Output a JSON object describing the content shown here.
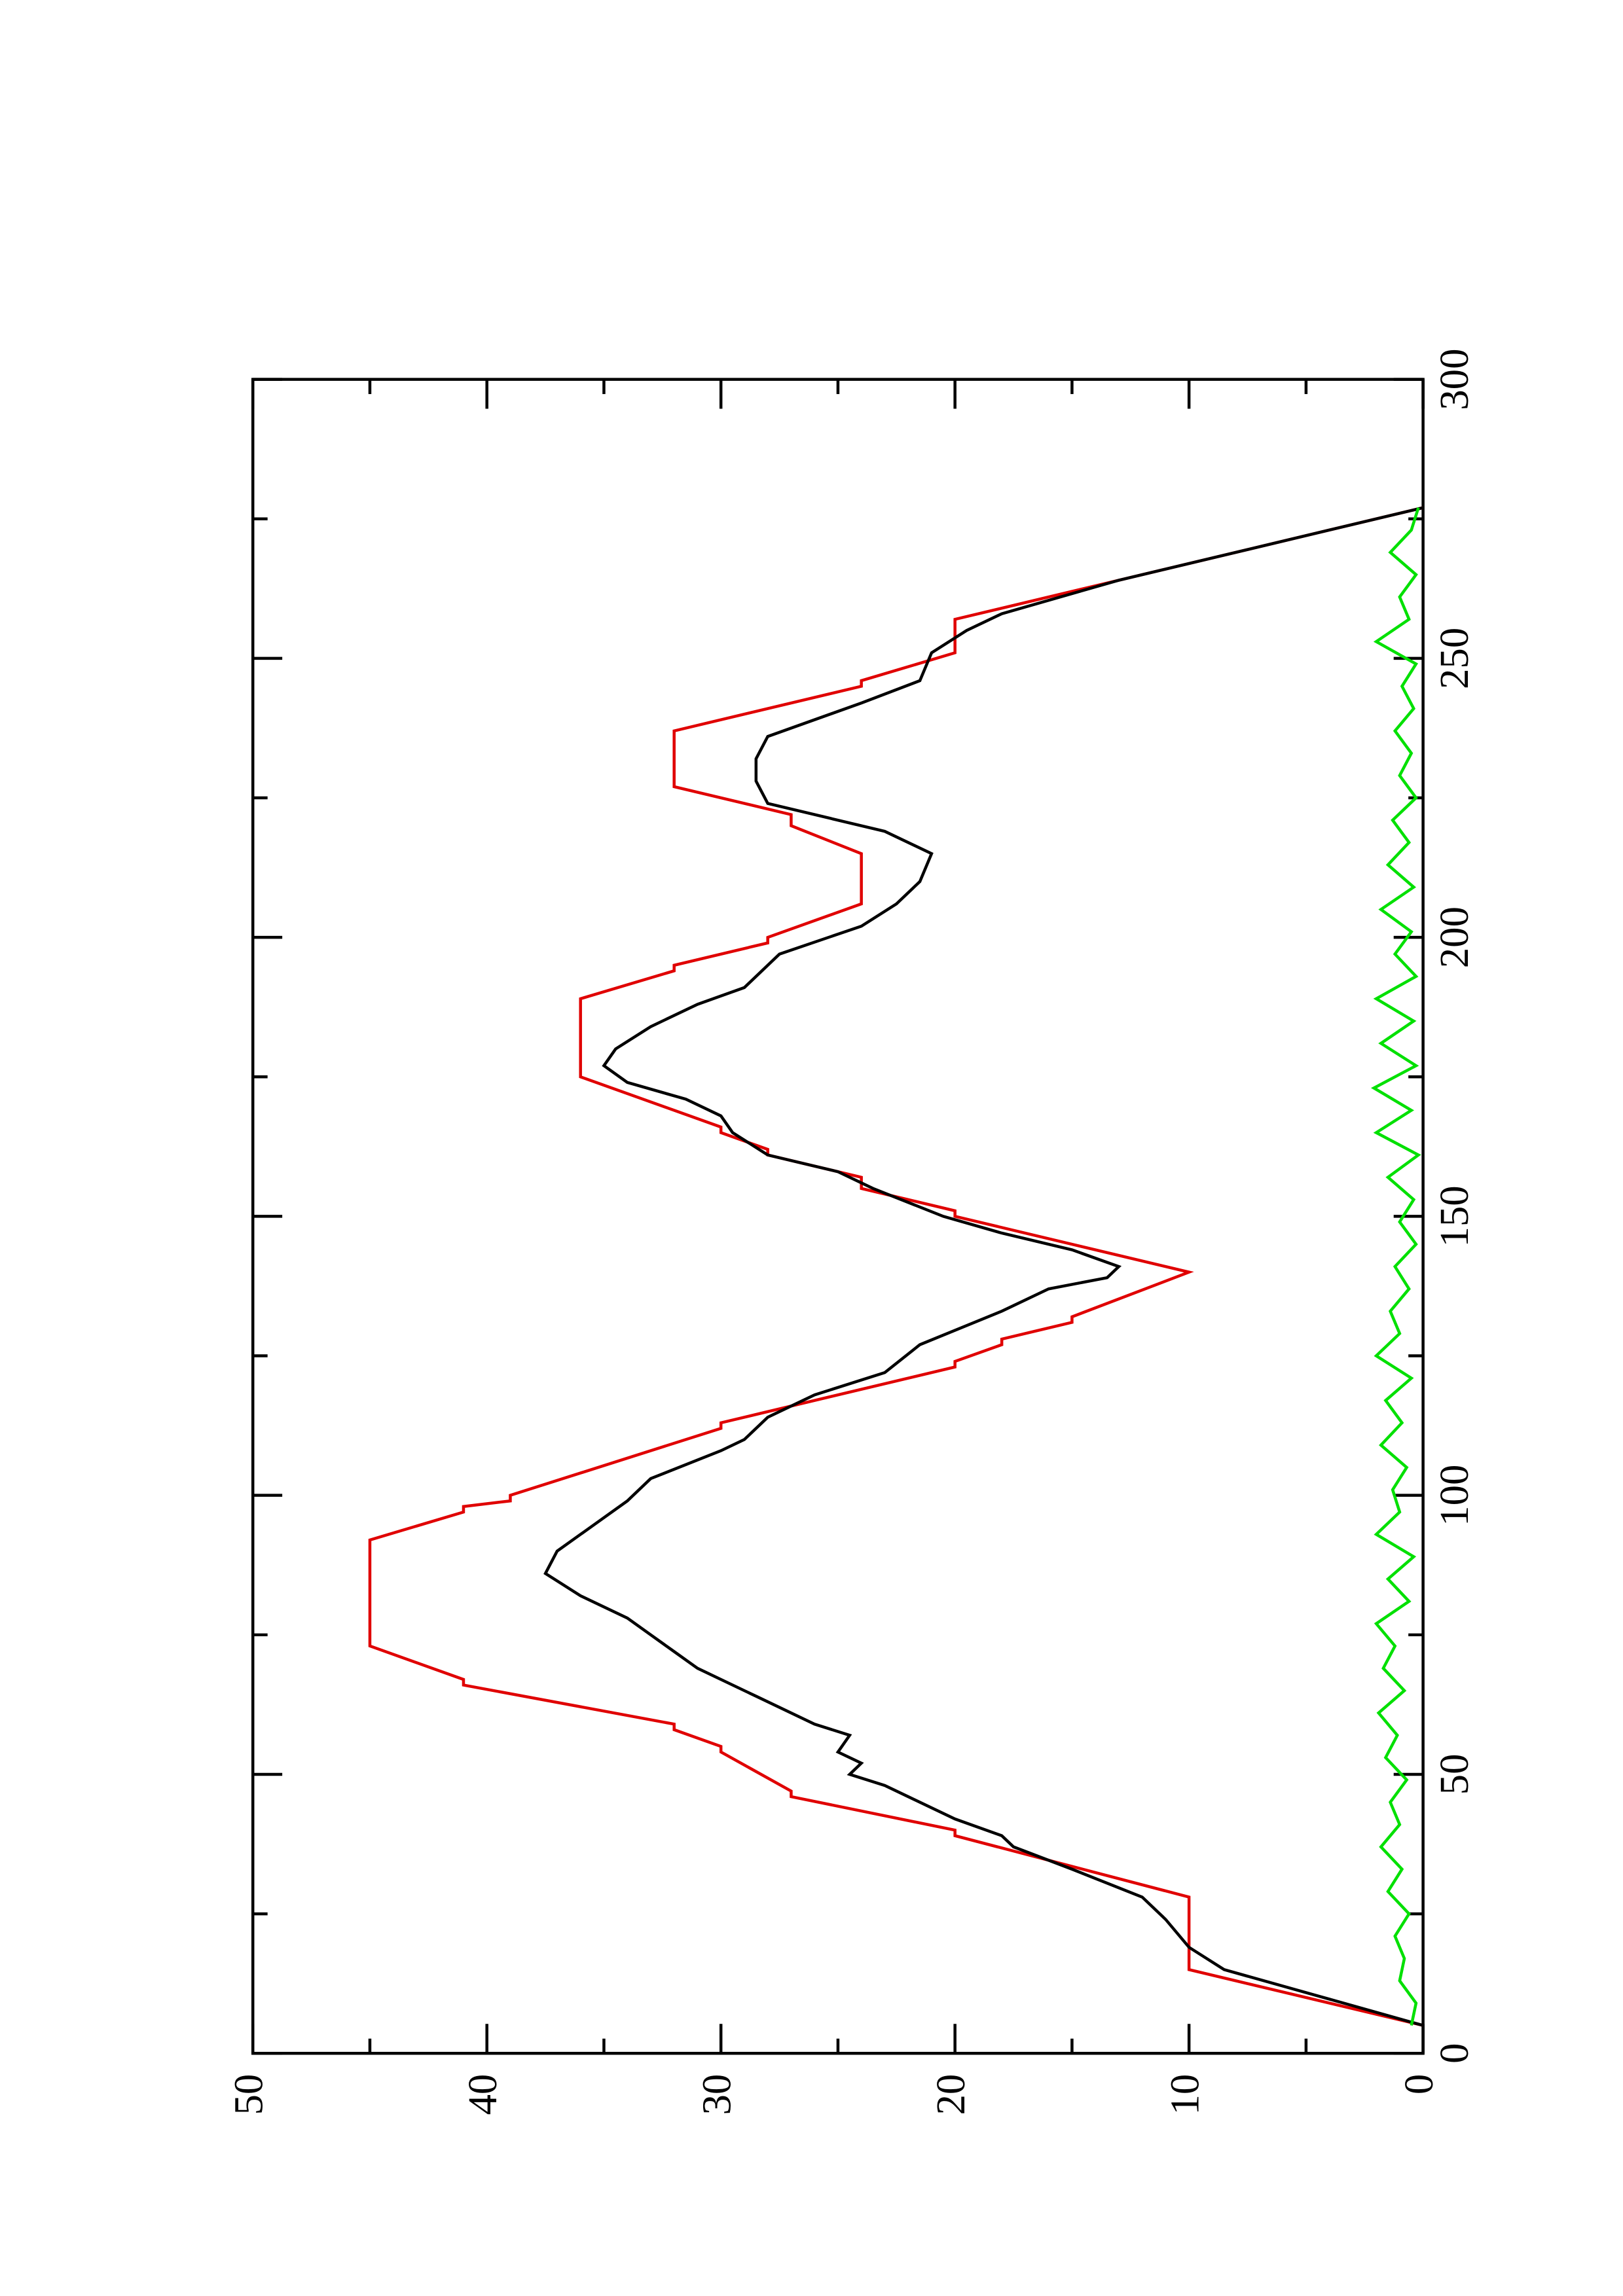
{
  "chart_data": {
    "type": "line",
    "orientation": "rotated",
    "xlim": [
      0,
      300
    ],
    "xticks": [
      0,
      50,
      100,
      150,
      200,
      250,
      300
    ],
    "xminor": [
      25,
      75,
      125,
      175,
      225,
      275
    ],
    "ylim": [
      0,
      50
    ],
    "yticks": [
      0,
      10,
      20,
      30,
      40,
      50
    ],
    "yminor": [
      5,
      15,
      25,
      35,
      45
    ],
    "series": [
      {
        "color": "#e00000",
        "x": [
          5,
          15,
          28,
          39,
          40,
          46,
          47,
          54,
          55,
          58,
          59,
          66,
          67,
          73,
          92,
          97,
          98,
          99,
          100,
          112,
          113,
          123,
          124,
          127,
          128,
          131,
          132,
          140,
          150,
          151,
          155,
          157,
          161,
          162,
          165,
          166,
          175,
          189,
          194,
          195,
          199,
          200,
          206,
          215,
          220,
          222,
          227,
          237,
          245,
          246,
          251,
          257,
          277
        ],
        "values": [
          0,
          10,
          10,
          20,
          20,
          27,
          27,
          30,
          30,
          32,
          32,
          41,
          41,
          45,
          45,
          41,
          41,
          39,
          39,
          30,
          30,
          20,
          20,
          18,
          18,
          15,
          15,
          10,
          20,
          20,
          24,
          24,
          28,
          28,
          30,
          30,
          36,
          36,
          32,
          32,
          28,
          28,
          24,
          24,
          27,
          27,
          32,
          32,
          24,
          24,
          20,
          20,
          0
        ]
      },
      {
        "color": "#000000",
        "x": [
          5,
          15,
          19,
          24,
          28,
          33,
          37,
          39,
          42,
          46,
          48,
          50,
          52,
          54,
          57,
          59,
          64,
          67,
          69,
          72,
          75,
          78,
          82,
          86,
          90,
          93,
          96,
          99,
          103,
          108,
          110,
          114,
          118,
          122,
          127,
          133,
          137,
          139,
          141,
          144,
          147,
          150,
          155,
          158,
          161,
          165,
          168,
          171,
          174,
          177,
          180,
          184,
          188,
          191,
          197,
          202,
          206,
          210,
          215,
          219,
          224,
          228,
          232,
          236,
          242,
          246,
          251,
          255,
          258,
          264,
          268,
          272,
          277
        ],
        "values": [
          0,
          8.5,
          10,
          11,
          12,
          15,
          17.5,
          18,
          20,
          22,
          23,
          24.5,
          24,
          25,
          24.5,
          26,
          28.5,
          30,
          31,
          32,
          33,
          34,
          36,
          37.5,
          37,
          36,
          35,
          34,
          33,
          30,
          29,
          28,
          26,
          23,
          21.5,
          18,
          16,
          13.5,
          13,
          15,
          18,
          20.5,
          23.5,
          25,
          28,
          29.5,
          30,
          31.5,
          34,
          35,
          34.5,
          33,
          31,
          29,
          27.5,
          24,
          22.5,
          21.5,
          21,
          23,
          28,
          28.5,
          28.5,
          28,
          24,
          21.5,
          21,
          19.5,
          18,
          13,
          9,
          5,
          0
        ]
      },
      {
        "color": "#00e000",
        "x": [
          5,
          9,
          13,
          17,
          21,
          25,
          29,
          33,
          37,
          41,
          45,
          49,
          53,
          57,
          61,
          65,
          69,
          73,
          77,
          81,
          85,
          89,
          93,
          97,
          101,
          105,
          109,
          113,
          117,
          121,
          125,
          129,
          133,
          137,
          141,
          145,
          149,
          153,
          157,
          161,
          165,
          169,
          173,
          177,
          181,
          185,
          189,
          193,
          197,
          201,
          205,
          209,
          213,
          217,
          221,
          225,
          229,
          233,
          237,
          241,
          245,
          249,
          253,
          257,
          261,
          265,
          269,
          273,
          277
        ],
        "values": [
          0.5,
          0.3,
          1,
          0.8,
          1.2,
          0.6,
          1.5,
          0.9,
          1.8,
          1,
          1.4,
          0.7,
          1.6,
          1.1,
          1.9,
          0.8,
          1.7,
          1.2,
          2,
          0.6,
          1.5,
          0.4,
          2,
          1,
          1.3,
          0.7,
          1.8,
          0.9,
          1.6,
          0.5,
          2,
          1,
          1.4,
          0.6,
          1.2,
          0.3,
          1,
          0.4,
          1.5,
          0.2,
          2,
          0.5,
          2.1,
          0.3,
          1.8,
          0.4,
          2,
          0.3,
          1.2,
          0.5,
          1.8,
          0.4,
          1.5,
          0.6,
          1.3,
          0.3,
          1,
          0.5,
          1.2,
          0.4,
          0.9,
          0.3,
          2,
          0.6,
          1,
          0.3,
          1.4,
          0.5,
          0.2
        ]
      }
    ]
  }
}
